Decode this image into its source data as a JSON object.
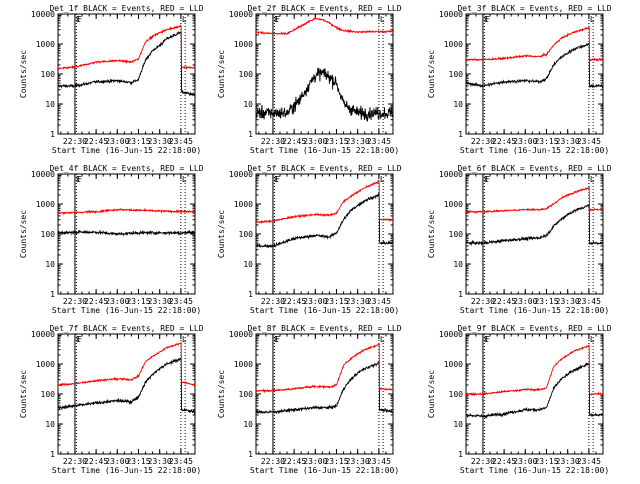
{
  "figure": {
    "colors": {
      "events": "#000000",
      "lld": "#ff0000",
      "axes": "#000000",
      "background": "#ffffff"
    }
  },
  "chart_data": [
    {
      "type": "line",
      "title": "Det_1f BLACK = Events, RED = LLD",
      "xlabel": "Start Time (16-Jun-15 22:18:00)",
      "ylabel": "Counts/sec",
      "ylim": [
        1,
        10000
      ],
      "yscale": "log",
      "xlim": [
        "22:18",
        "23:55"
      ],
      "x_ticks": [
        "22:30",
        "22:45",
        "23:00",
        "23:15",
        "23:30",
        "23:45"
      ],
      "y_ticks": [
        "1",
        "10",
        "100",
        "1000",
        "10000"
      ],
      "markers": [
        {
          "time": "22:30",
          "label": "E",
          "style": "solid"
        },
        {
          "time": "22:31",
          "label": "F",
          "style": "dotted"
        },
        {
          "time": "23:45",
          "label": "L",
          "style": "dotted"
        },
        {
          "time": "23:48",
          "label": "",
          "style": "dotted"
        }
      ],
      "series": [
        {
          "name": "Events",
          "color": "#000000",
          "x": [
            "22:18",
            "22:30",
            "22:45",
            "23:00",
            "23:10",
            "23:15",
            "23:20",
            "23:25",
            "23:30",
            "23:35",
            "23:45",
            "23:46",
            "23:55"
          ],
          "values": [
            40,
            40,
            55,
            60,
            52,
            65,
            300,
            600,
            900,
            1500,
            2500,
            25,
            20
          ]
        },
        {
          "name": "LLD",
          "color": "#ff0000",
          "x": [
            "22:18",
            "22:30",
            "22:45",
            "23:00",
            "23:10",
            "23:15",
            "23:20",
            "23:25",
            "23:30",
            "23:35",
            "23:45",
            "23:46",
            "23:55"
          ],
          "values": [
            150,
            170,
            250,
            280,
            250,
            320,
            1200,
            1800,
            2400,
            3000,
            4000,
            170,
            160
          ]
        }
      ]
    },
    {
      "type": "line",
      "title": "Det_2f BLACK = Events, RED = LLD",
      "xlabel": "Start Time (16-Jun-15 22:18:00)",
      "ylabel": "Counts/sec",
      "ylim": [
        1,
        10000
      ],
      "yscale": "log",
      "xlim": [
        "22:18",
        "23:55"
      ],
      "x_ticks": [
        "22:30",
        "22:45",
        "23:00",
        "23:15",
        "23:30",
        "23:45"
      ],
      "y_ticks": [
        "1",
        "10",
        "100",
        "1000",
        "10000"
      ],
      "markers": [
        {
          "time": "22:30",
          "label": "E",
          "style": "solid"
        },
        {
          "time": "22:31",
          "label": "F",
          "style": "dotted"
        },
        {
          "time": "23:45",
          "label": "L",
          "style": "dotted"
        },
        {
          "time": "23:48",
          "label": "",
          "style": "dotted"
        }
      ],
      "series": [
        {
          "name": "Events",
          "color": "#000000",
          "x": [
            "22:18",
            "22:30",
            "22:40",
            "22:48",
            "22:55",
            "23:00",
            "23:05",
            "23:10",
            "23:15",
            "23:20",
            "23:30",
            "23:45",
            "23:55"
          ],
          "values": [
            5,
            5,
            5,
            12,
            40,
            90,
            110,
            80,
            50,
            10,
            5,
            5,
            5
          ]
        },
        {
          "name": "LLD",
          "color": "#ff0000",
          "x": [
            "22:18",
            "22:30",
            "22:40",
            "22:48",
            "22:55",
            "23:00",
            "23:05",
            "23:10",
            "23:15",
            "23:20",
            "23:30",
            "23:45",
            "23:55"
          ],
          "values": [
            2500,
            2200,
            2200,
            3500,
            5500,
            7000,
            6500,
            5000,
            3500,
            2800,
            2500,
            2600,
            2600
          ]
        }
      ]
    },
    {
      "type": "line",
      "title": "Det_3f BLACK = Events, RED = LLD",
      "xlabel": "Start Time (16-Jun-15 22:18:00)",
      "ylabel": "Counts/sec",
      "ylim": [
        1,
        10000
      ],
      "yscale": "log",
      "xlim": [
        "22:18",
        "23:55"
      ],
      "x_ticks": [
        "22:30",
        "22:45",
        "23:00",
        "23:15",
        "23:30",
        "23:45"
      ],
      "y_ticks": [
        "1",
        "10",
        "100",
        "1000",
        "10000"
      ],
      "markers": [
        {
          "time": "22:30",
          "label": "E",
          "style": "solid"
        },
        {
          "time": "22:31",
          "label": "F",
          "style": "dotted"
        },
        {
          "time": "23:45",
          "label": "L",
          "style": "dotted"
        },
        {
          "time": "23:48",
          "label": "",
          "style": "dotted"
        }
      ],
      "series": [
        {
          "name": "Events",
          "color": "#000000",
          "x": [
            "22:18",
            "22:30",
            "22:45",
            "23:00",
            "23:10",
            "23:15",
            "23:20",
            "23:25",
            "23:30",
            "23:35",
            "23:45",
            "23:46",
            "23:55"
          ],
          "values": [
            50,
            40,
            55,
            60,
            55,
            70,
            200,
            350,
            500,
            700,
            1000,
            40,
            40
          ]
        },
        {
          "name": "LLD",
          "color": "#ff0000",
          "x": [
            "22:18",
            "22:30",
            "22:45",
            "23:00",
            "23:10",
            "23:15",
            "23:20",
            "23:25",
            "23:30",
            "23:35",
            "23:45",
            "23:46",
            "23:55"
          ],
          "values": [
            300,
            300,
            330,
            400,
            380,
            450,
            900,
            1500,
            2000,
            2500,
            3500,
            300,
            300
          ]
        }
      ]
    },
    {
      "type": "line",
      "title": "Det_4f BLACK = Events, RED = LLD",
      "xlabel": "Start Time (16-Jun-15 22:18:00)",
      "ylabel": "Counts/sec",
      "ylim": [
        1,
        10000
      ],
      "yscale": "log",
      "xlim": [
        "22:18",
        "23:55"
      ],
      "x_ticks": [
        "22:30",
        "22:45",
        "23:00",
        "23:15",
        "23:30",
        "23:45"
      ],
      "y_ticks": [
        "1",
        "10",
        "100",
        "1000",
        "10000"
      ],
      "markers": [
        {
          "time": "22:30",
          "label": "E",
          "style": "solid"
        },
        {
          "time": "22:31",
          "label": "F",
          "style": "dotted"
        },
        {
          "time": "23:45",
          "label": "L",
          "style": "dotted"
        },
        {
          "time": "23:48",
          "label": "",
          "style": "dotted"
        }
      ],
      "series": [
        {
          "name": "Events",
          "color": "#000000",
          "x": [
            "22:18",
            "22:30",
            "22:45",
            "23:00",
            "23:15",
            "23:30",
            "23:45",
            "23:55"
          ],
          "values": [
            110,
            115,
            115,
            100,
            110,
            110,
            110,
            115
          ]
        },
        {
          "name": "LLD",
          "color": "#ff0000",
          "x": [
            "22:18",
            "22:30",
            "22:45",
            "23:00",
            "23:15",
            "23:30",
            "23:45",
            "23:55"
          ],
          "values": [
            500,
            520,
            560,
            650,
            620,
            580,
            560,
            550
          ]
        }
      ]
    },
    {
      "type": "line",
      "title": "Det_5f BLACK = Events, RED = LLD",
      "xlabel": "Start Time (16-Jun-15 22:18:00)",
      "ylabel": "Counts/sec",
      "ylim": [
        1,
        10000
      ],
      "yscale": "log",
      "xlim": [
        "22:18",
        "23:55"
      ],
      "x_ticks": [
        "22:30",
        "22:45",
        "23:00",
        "23:15",
        "23:30",
        "23:45"
      ],
      "y_ticks": [
        "1",
        "10",
        "100",
        "1000",
        "10000"
      ],
      "markers": [
        {
          "time": "22:30",
          "label": "E",
          "style": "solid"
        },
        {
          "time": "22:31",
          "label": "F",
          "style": "dotted"
        },
        {
          "time": "23:45",
          "label": "L",
          "style": "dotted"
        },
        {
          "time": "23:48",
          "label": "",
          "style": "dotted"
        }
      ],
      "series": [
        {
          "name": "Events",
          "color": "#000000",
          "x": [
            "22:18",
            "22:30",
            "22:45",
            "23:00",
            "23:10",
            "23:15",
            "23:20",
            "23:25",
            "23:30",
            "23:35",
            "23:45",
            "23:46",
            "23:55"
          ],
          "values": [
            40,
            40,
            70,
            90,
            80,
            110,
            300,
            600,
            900,
            1300,
            2000,
            50,
            50
          ]
        },
        {
          "name": "LLD",
          "color": "#ff0000",
          "x": [
            "22:18",
            "22:30",
            "22:45",
            "23:00",
            "23:10",
            "23:15",
            "23:20",
            "23:25",
            "23:30",
            "23:35",
            "23:45",
            "23:46",
            "23:55"
          ],
          "values": [
            250,
            270,
            380,
            450,
            420,
            500,
            1200,
            1800,
            2500,
            3500,
            5500,
            300,
            300
          ]
        }
      ]
    },
    {
      "type": "line",
      "title": "Det_6f BLACK = Events, RED = LLD",
      "xlabel": "Start Time (16-Jun-15 22:18:00)",
      "ylabel": "Counts/sec",
      "ylim": [
        1,
        10000
      ],
      "yscale": "log",
      "xlim": [
        "22:18",
        "23:55"
      ],
      "x_ticks": [
        "22:30",
        "22:45",
        "23:00",
        "23:15",
        "23:30",
        "23:45"
      ],
      "y_ticks": [
        "1",
        "10",
        "100",
        "1000",
        "10000"
      ],
      "markers": [
        {
          "time": "22:30",
          "label": "E",
          "style": "solid"
        },
        {
          "time": "22:31",
          "label": "F",
          "style": "dotted"
        },
        {
          "time": "23:45",
          "label": "L",
          "style": "dotted"
        },
        {
          "time": "23:48",
          "label": "",
          "style": "dotted"
        }
      ],
      "series": [
        {
          "name": "Events",
          "color": "#000000",
          "x": [
            "22:18",
            "22:30",
            "22:45",
            "23:00",
            "23:10",
            "23:15",
            "23:20",
            "23:25",
            "23:30",
            "23:35",
            "23:45",
            "23:46",
            "23:55"
          ],
          "values": [
            50,
            50,
            60,
            70,
            75,
            90,
            180,
            300,
            450,
            600,
            900,
            50,
            50
          ]
        },
        {
          "name": "LLD",
          "color": "#ff0000",
          "x": [
            "22:18",
            "22:30",
            "22:45",
            "23:00",
            "23:10",
            "23:15",
            "23:20",
            "23:25",
            "23:30",
            "23:35",
            "23:45",
            "23:46",
            "23:55"
          ],
          "values": [
            550,
            550,
            600,
            650,
            650,
            700,
            1000,
            1500,
            2000,
            2500,
            3500,
            650,
            650
          ]
        }
      ]
    },
    {
      "type": "line",
      "title": "Det_7f BLACK = Events, RED = LLD",
      "xlabel": "Start Time (16-Jun-15 22:18:00)",
      "ylabel": "Counts/sec",
      "ylim": [
        1,
        10000
      ],
      "yscale": "log",
      "xlim": [
        "22:18",
        "23:55"
      ],
      "x_ticks": [
        "22:30",
        "22:45",
        "23:00",
        "23:15",
        "23:30",
        "23:45"
      ],
      "y_ticks": [
        "1",
        "10",
        "100",
        "1000",
        "10000"
      ],
      "markers": [
        {
          "time": "22:30",
          "label": "E",
          "style": "solid"
        },
        {
          "time": "22:31",
          "label": "F",
          "style": "dotted"
        },
        {
          "time": "23:45",
          "label": "L",
          "style": "dotted"
        },
        {
          "time": "23:48",
          "label": "",
          "style": "dotted"
        }
      ],
      "series": [
        {
          "name": "Events",
          "color": "#000000",
          "x": [
            "22:18",
            "22:30",
            "22:45",
            "23:00",
            "23:10",
            "23:15",
            "23:20",
            "23:25",
            "23:30",
            "23:35",
            "23:45",
            "23:46",
            "23:55"
          ],
          "values": [
            35,
            40,
            50,
            60,
            55,
            80,
            250,
            450,
            700,
            1000,
            1500,
            30,
            25
          ]
        },
        {
          "name": "LLD",
          "color": "#ff0000",
          "x": [
            "22:18",
            "22:30",
            "22:45",
            "23:00",
            "23:10",
            "23:15",
            "23:20",
            "23:25",
            "23:30",
            "23:35",
            "23:45",
            "23:46",
            "23:55"
          ],
          "values": [
            200,
            220,
            280,
            320,
            300,
            400,
            1200,
            1800,
            2500,
            3500,
            5000,
            250,
            200
          ]
        }
      ]
    },
    {
      "type": "line",
      "title": "Det_8f BLACK = Events, RED = LLD",
      "xlabel": "Start Time (16-Jun-15 22:18:00)",
      "ylabel": "Counts/sec",
      "ylim": [
        1,
        10000
      ],
      "yscale": "log",
      "xlim": [
        "22:18",
        "23:55"
      ],
      "x_ticks": [
        "22:30",
        "22:45",
        "23:00",
        "23:15",
        "23:30",
        "23:45"
      ],
      "y_ticks": [
        "1",
        "10",
        "100",
        "1000",
        "10000"
      ],
      "markers": [
        {
          "time": "22:30",
          "label": "E",
          "style": "solid"
        },
        {
          "time": "22:31",
          "label": "F",
          "style": "dotted"
        },
        {
          "time": "23:45",
          "label": "L",
          "style": "dotted"
        },
        {
          "time": "23:48",
          "label": "",
          "style": "dotted"
        }
      ],
      "series": [
        {
          "name": "Events",
          "color": "#000000",
          "x": [
            "22:18",
            "22:30",
            "22:45",
            "23:00",
            "23:10",
            "23:15",
            "23:20",
            "23:25",
            "23:30",
            "23:35",
            "23:45",
            "23:46",
            "23:55"
          ],
          "values": [
            25,
            25,
            30,
            35,
            35,
            40,
            150,
            300,
            500,
            700,
            1100,
            30,
            25
          ]
        },
        {
          "name": "LLD",
          "color": "#ff0000",
          "x": [
            "22:18",
            "22:30",
            "22:45",
            "23:00",
            "23:10",
            "23:15",
            "23:20",
            "23:25",
            "23:30",
            "23:35",
            "23:45",
            "23:46",
            "23:55"
          ],
          "values": [
            130,
            130,
            150,
            180,
            170,
            200,
            900,
            1500,
            2200,
            3000,
            4500,
            150,
            140
          ]
        }
      ]
    },
    {
      "type": "line",
      "title": "Det_9f BLACK = Events, RED = LLD",
      "xlabel": "Start Time (16-Jun-15 22:18:00)",
      "ylabel": "Counts/sec",
      "ylim": [
        1,
        10000
      ],
      "yscale": "log",
      "xlim": [
        "22:18",
        "23:55"
      ],
      "x_ticks": [
        "22:30",
        "22:45",
        "23:00",
        "23:15",
        "23:30",
        "23:45"
      ],
      "y_ticks": [
        "1",
        "10",
        "100",
        "1000",
        "10000"
      ],
      "markers": [
        {
          "time": "22:30",
          "label": "E",
          "style": "solid"
        },
        {
          "time": "22:31",
          "label": "F",
          "style": "dotted"
        },
        {
          "time": "23:45",
          "label": "L",
          "style": "dotted"
        },
        {
          "time": "23:48",
          "label": "",
          "style": "dotted"
        }
      ],
      "series": [
        {
          "name": "Events",
          "color": "#000000",
          "x": [
            "22:18",
            "22:30",
            "22:45",
            "23:00",
            "23:10",
            "23:15",
            "23:20",
            "23:25",
            "23:30",
            "23:35",
            "23:45",
            "23:46",
            "23:55"
          ],
          "values": [
            20,
            18,
            22,
            30,
            30,
            35,
            150,
            300,
            450,
            650,
            1000,
            20,
            20
          ]
        },
        {
          "name": "LLD",
          "color": "#ff0000",
          "x": [
            "22:18",
            "22:30",
            "22:45",
            "23:00",
            "23:10",
            "23:15",
            "23:20",
            "23:25",
            "23:30",
            "23:35",
            "23:45",
            "23:46",
            "23:55"
          ],
          "values": [
            100,
            100,
            120,
            140,
            140,
            160,
            800,
            1400,
            2000,
            2800,
            4000,
            100,
            100
          ]
        }
      ]
    }
  ]
}
